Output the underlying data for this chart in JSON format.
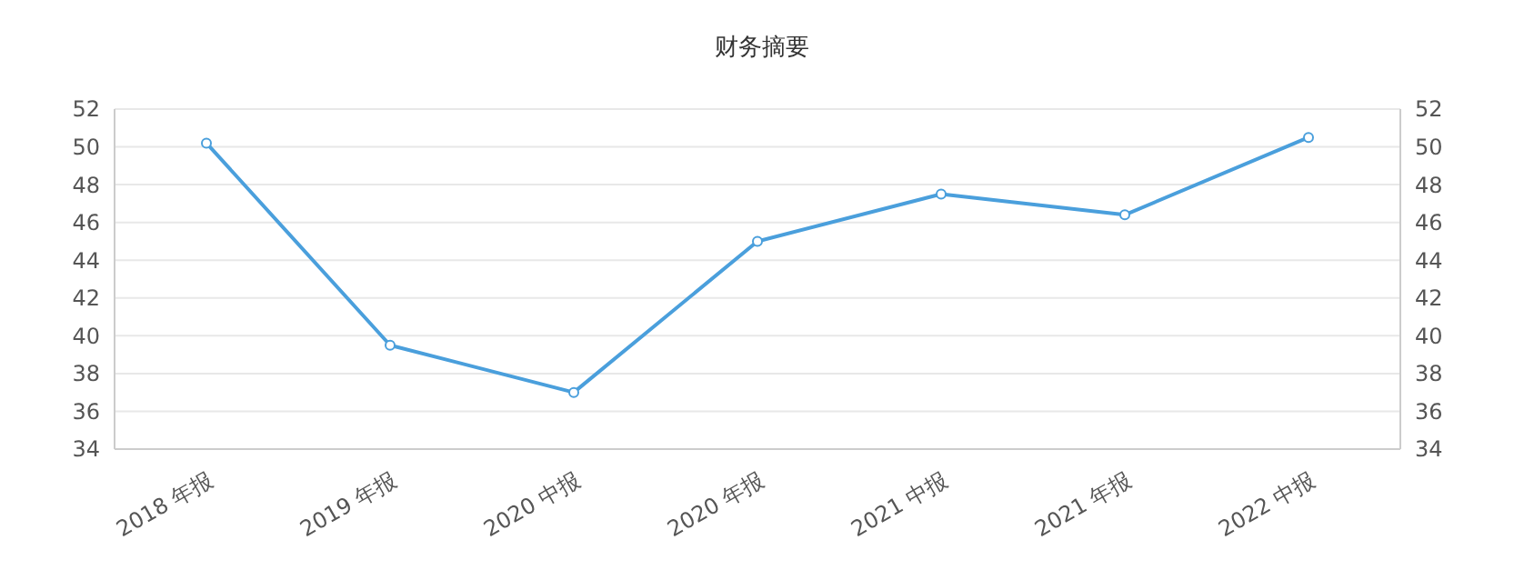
{
  "chart_data": {
    "type": "line",
    "title": "财务摘要",
    "categories": [
      "2018 年报",
      "2019 年报",
      "2020 中报",
      "2020 年报",
      "2021 中报",
      "2021 年报",
      "2022 中报"
    ],
    "series": [
      {
        "color": "#4a9fdc",
        "values": [
          50.2,
          39.5,
          37.0,
          45.0,
          47.5,
          46.4,
          50.5
        ]
      }
    ],
    "ylim": [
      34,
      52
    ],
    "yticks": [
      34,
      36,
      38,
      40,
      42,
      44,
      46,
      48,
      50,
      52
    ],
    "y2lim": [
      34,
      52
    ],
    "y2ticks": [
      34,
      36,
      38,
      40,
      42,
      44,
      46,
      48,
      50,
      52
    ],
    "grid": "y",
    "marker": "circle",
    "line_style": "solid"
  }
}
